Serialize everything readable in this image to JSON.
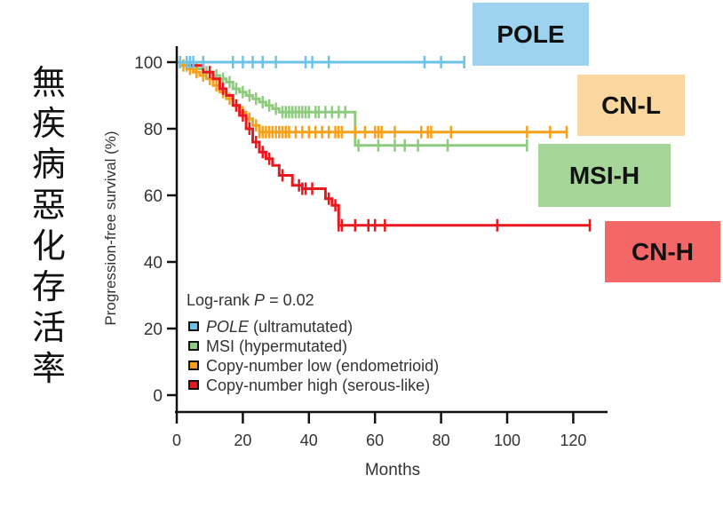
{
  "side_title_chars": [
    "無",
    "疾",
    "病",
    "惡",
    "化",
    "存",
    "活",
    "率"
  ],
  "tags": [
    {
      "label": "POLE",
      "color": "#9dd3ef"
    },
    {
      "label": "CN-L",
      "color": "#fbd7a0"
    },
    {
      "label": "MSI-H",
      "color": "#a6d59a"
    },
    {
      "label": "CN-H",
      "color": "#f46767"
    }
  ],
  "chart_data": {
    "type": "line",
    "subtype": "kaplan-meier",
    "title": "",
    "xlabel": "Months",
    "ylabel": "Progression-free survival (%)",
    "xlim": [
      0,
      130
    ],
    "ylim": [
      0,
      100
    ],
    "xticks": [
      0,
      20,
      40,
      60,
      80,
      100,
      120
    ],
    "yticks": [
      0,
      20,
      40,
      60,
      80,
      100
    ],
    "grid": false,
    "annotation": {
      "prefix": "Log-rank ",
      "italic": "P",
      "suffix": " = 0.02"
    },
    "legend_position": "bottom-left",
    "series": [
      {
        "name": "POLE (ultramutated)",
        "legend_italic": "POLE",
        "legend_rest": " (ultramutated)",
        "color": "#6cc3ea",
        "steps": [
          [
            0,
            100
          ],
          [
            87,
            100
          ]
        ],
        "censored": [
          1,
          3,
          4,
          5,
          8,
          17,
          20,
          23,
          26,
          30,
          39,
          41,
          46,
          75,
          80,
          87
        ]
      },
      {
        "name": "MSI (hypermutated)",
        "legend_italic": "",
        "legend_rest": "MSI (hypermutated)",
        "color": "#8fcb7f",
        "steps": [
          [
            0,
            100
          ],
          [
            2,
            99
          ],
          [
            5,
            98
          ],
          [
            8,
            97
          ],
          [
            11,
            96
          ],
          [
            13,
            95
          ],
          [
            15,
            94
          ],
          [
            17,
            92
          ],
          [
            19,
            91
          ],
          [
            21,
            90
          ],
          [
            23,
            89
          ],
          [
            25,
            88
          ],
          [
            27,
            87
          ],
          [
            29,
            86
          ],
          [
            31,
            85
          ],
          [
            53,
            85
          ],
          [
            54,
            75
          ],
          [
            106,
            75
          ]
        ],
        "censored": [
          3,
          6,
          9,
          12,
          14,
          16,
          18,
          20,
          22,
          24,
          26,
          28,
          30,
          32,
          33,
          34,
          35,
          36,
          37,
          38,
          39,
          40,
          42,
          43,
          45,
          47,
          49,
          51,
          55,
          61,
          66,
          69,
          73,
          82,
          106
        ]
      },
      {
        "name": "Copy-number low (endometrioid)",
        "legend_italic": "",
        "legend_rest": "Copy-number low (endometrioid)",
        "color": "#f7a11a",
        "steps": [
          [
            0,
            100
          ],
          [
            1,
            99
          ],
          [
            3,
            98
          ],
          [
            5,
            97
          ],
          [
            7,
            96
          ],
          [
            9,
            95
          ],
          [
            11,
            93
          ],
          [
            13,
            91
          ],
          [
            15,
            89
          ],
          [
            17,
            87
          ],
          [
            19,
            85
          ],
          [
            21,
            83
          ],
          [
            23,
            81
          ],
          [
            25,
            79
          ],
          [
            118,
            79
          ]
        ],
        "censored": [
          2,
          4,
          6,
          8,
          10,
          12,
          14,
          16,
          18,
          20,
          22,
          24,
          25,
          26,
          27,
          28,
          29,
          30,
          31,
          32,
          33,
          34,
          36,
          38,
          40,
          42,
          44,
          46,
          48,
          49,
          50,
          54,
          57,
          60,
          61,
          62,
          66,
          74,
          76,
          77,
          83,
          106,
          113,
          118
        ]
      },
      {
        "name": "Copy-number high (serous-like)",
        "legend_italic": "",
        "legend_rest": "Copy-number high (serous-like)",
        "color": "#e8191e",
        "steps": [
          [
            0,
            100
          ],
          [
            4,
            99
          ],
          [
            8,
            97
          ],
          [
            11,
            95
          ],
          [
            13,
            92
          ],
          [
            15,
            90
          ],
          [
            17,
            87
          ],
          [
            19,
            84
          ],
          [
            21,
            80
          ],
          [
            23,
            76
          ],
          [
            25,
            73
          ],
          [
            27,
            71
          ],
          [
            29,
            69
          ],
          [
            31,
            66
          ],
          [
            35,
            63
          ],
          [
            38,
            62
          ],
          [
            44,
            62
          ],
          [
            45,
            59
          ],
          [
            47,
            57
          ],
          [
            49,
            51
          ],
          [
            125,
            51
          ]
        ],
        "censored": [
          10,
          14,
          18,
          20,
          22,
          24,
          26,
          28,
          32,
          37,
          38,
          39,
          41,
          46,
          48,
          49,
          50,
          54,
          58,
          60,
          63,
          97,
          125
        ]
      }
    ]
  }
}
